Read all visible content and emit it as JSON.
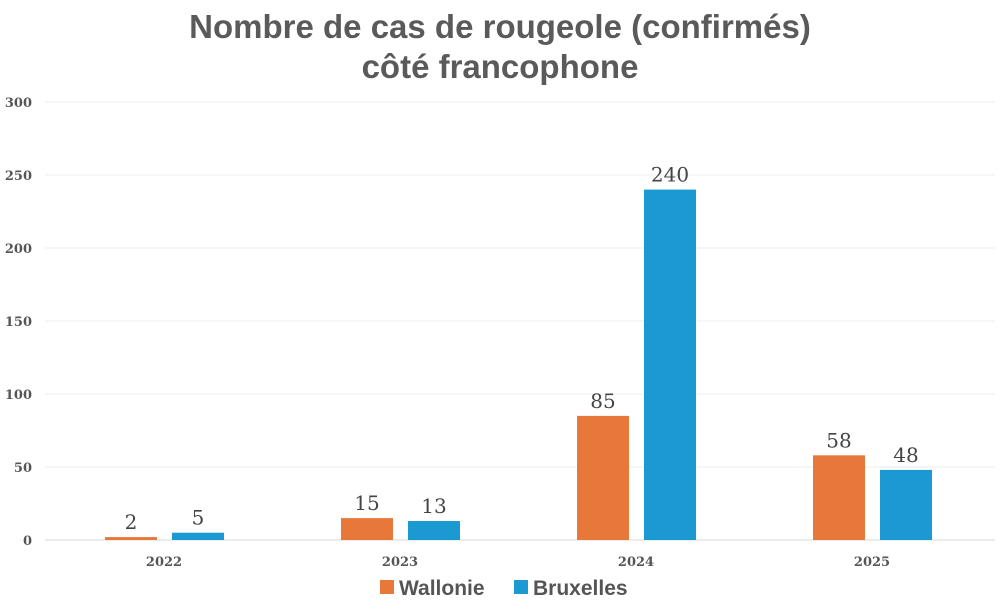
{
  "chart_data": {
    "type": "bar",
    "title": [
      "Nombre de cas de rougeole (confirmés)",
      "côté francophone"
    ],
    "categories": [
      "2022",
      "2023",
      "2024",
      "2025"
    ],
    "series": [
      {
        "name": "Wallonie",
        "color": "#E8783A",
        "values": [
          2,
          15,
          85,
          58
        ]
      },
      {
        "name": "Bruxelles",
        "color": "#1A9AD0",
        "values": [
          5,
          13,
          240,
          48
        ]
      }
    ],
    "ylim": [
      0,
      300
    ],
    "yticks": [
      0,
      50,
      100,
      150,
      200,
      250,
      300
    ],
    "grid": true,
    "legend": "bottom",
    "data_labels": true
  }
}
